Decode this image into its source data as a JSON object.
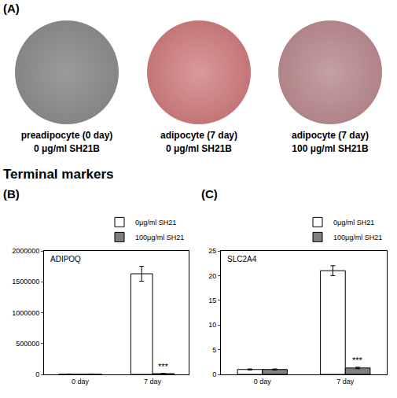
{
  "panel_a": {
    "label": "(A)",
    "wells": [
      {
        "caption": [
          "preadipocyte (0 day)",
          "0 μg/ml SH21B"
        ]
      },
      {
        "caption": [
          "adipocyte (7 day)",
          "0 μg/ml SH21B"
        ]
      },
      {
        "caption": [
          "adipocyte (7 day)",
          "100 μg/ml SH21B"
        ]
      }
    ]
  },
  "section_title": "Terminal markers",
  "chart_data": [
    {
      "panel": "(B)",
      "type": "bar",
      "title": "ADIPOQ",
      "categories": [
        "0 day",
        "7 day"
      ],
      "series": [
        {
          "name": "0μg/ml SH21",
          "color": "#ffffff",
          "values": [
            1,
            1630000
          ],
          "errors": [
            0,
            120000
          ]
        },
        {
          "name": "100μg/ml SH21",
          "color": "#7f7f7f",
          "values": [
            1,
            12000
          ],
          "errors": [
            0,
            3000
          ]
        }
      ],
      "ylim": [
        0,
        2000000
      ],
      "yticks": [
        0,
        500000,
        1000000,
        1500000,
        2000000
      ],
      "annotations": [
        {
          "text": "***",
          "category": "7 day",
          "series": "100μg/ml SH21"
        }
      ],
      "legend": "top right",
      "grid": false
    },
    {
      "panel": "(C)",
      "type": "bar",
      "title": "SLC2A4",
      "categories": [
        "0 day",
        "7 day"
      ],
      "series": [
        {
          "name": "0μg/ml SH21",
          "color": "#ffffff",
          "values": [
            1,
            21
          ],
          "errors": [
            0.1,
            1
          ]
        },
        {
          "name": "100μg/ml SH21",
          "color": "#7f7f7f",
          "values": [
            1,
            1.3
          ],
          "errors": [
            0.1,
            0.15
          ]
        }
      ],
      "ylim": [
        0,
        25
      ],
      "yticks": [
        0,
        5,
        10,
        15,
        20,
        25
      ],
      "annotations": [
        {
          "text": "***",
          "category": "7 day",
          "series": "100μg/ml SH21"
        }
      ],
      "legend": "top right",
      "grid": false
    }
  ]
}
